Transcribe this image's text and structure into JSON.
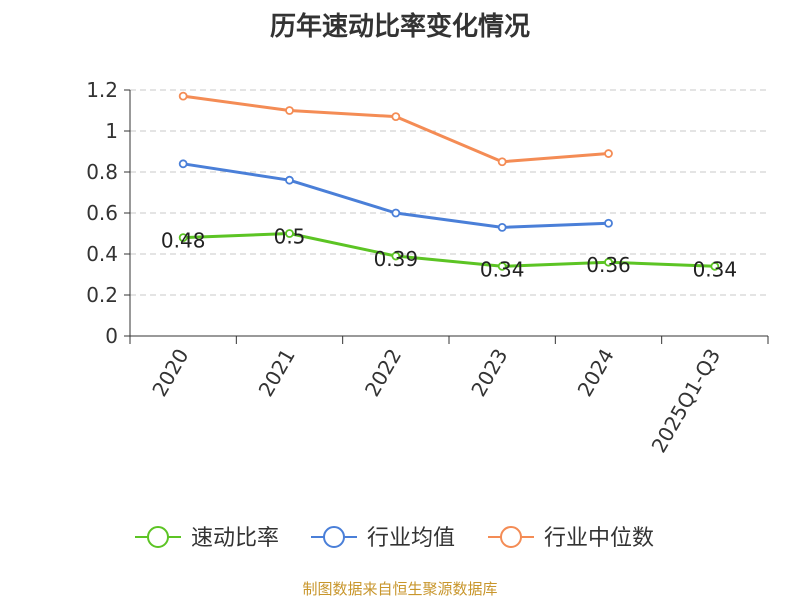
{
  "chart_data": {
    "type": "line",
    "title": "历年速动比率变化情况",
    "xlabel": "",
    "ylabel": "",
    "categories": [
      "2020",
      "2021",
      "2022",
      "2023",
      "2024",
      "2025Q1-Q3"
    ],
    "ylim": [
      0,
      1.2
    ],
    "yticks": [
      0,
      0.2,
      0.4,
      0.6,
      0.8,
      1,
      1.2
    ],
    "ytick_labels": [
      "0",
      "0.2",
      "0.4",
      "0.6",
      "0.8",
      "1",
      "1.2"
    ],
    "grid": true,
    "legend_position": "bottom",
    "series": [
      {
        "name": "速动比率",
        "color": "#5cc424",
        "values": [
          0.48,
          0.5,
          0.39,
          0.34,
          0.36,
          0.34
        ],
        "data_labels": [
          "0.48",
          "0.5",
          "0.39",
          "0.34",
          "0.36",
          "0.34"
        ]
      },
      {
        "name": "行业均值",
        "color": "#4a7fd8",
        "values": [
          0.84,
          0.76,
          0.6,
          0.53,
          0.55,
          null
        ]
      },
      {
        "name": "行业中位数",
        "color": "#f48c55",
        "values": [
          1.17,
          1.1,
          1.07,
          0.85,
          0.89,
          null
        ]
      }
    ]
  },
  "source": {
    "text": "制图数据来自恒生聚源数据库",
    "color": "#c8962c"
  }
}
